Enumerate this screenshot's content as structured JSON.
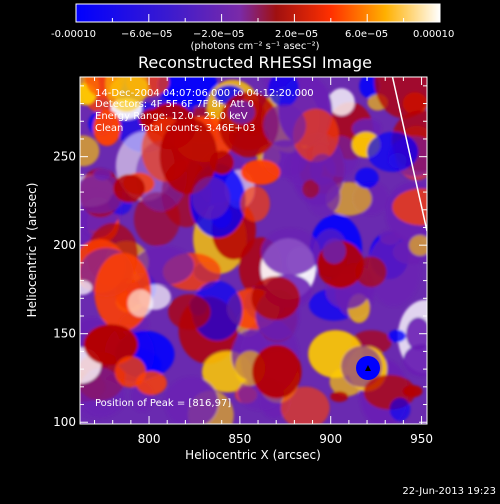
{
  "colorbar": {
    "tick_labels": [
      "-0.00010",
      "−6.0e−05",
      "−2.0e−05",
      "2.0e−05",
      "6.0e−05",
      "0.00010"
    ],
    "unit_label": "(photons cm⁻² s⁻¹ asec⁻²)"
  },
  "chart_data": {
    "type": "heatmap",
    "title": "Reconstructed RHESSI Image",
    "xlabel": "Heliocentric X (arcsec)",
    "ylabel": "Heliocentric Y (arcsec)",
    "xlim": [
      762,
      953
    ],
    "ylim": [
      99,
      295
    ],
    "x_ticks": [
      800,
      850,
      900,
      950
    ],
    "y_ticks": [
      100,
      150,
      200,
      250
    ],
    "clim": [
      -0.0001,
      0.0001
    ],
    "colormap": [
      "#0000ff",
      "#6a1fb4",
      "#b50000",
      "#ff4000",
      "#ffcc00",
      "#ffffff"
    ],
    "annotations": [
      "14-Dec-2004 04:07:06.000 to 04:12:20.000",
      "Detectors: 4F 5F 6F 7F 8F, Att 0",
      "Energy Range: 12.0 - 25.0 keV",
      "Clean     Total counts: 3.46E+03"
    ],
    "peak_label": "Position of Peak = [816,97]",
    "limb_curve": [
      [
        934,
        295
      ],
      [
        953,
        208
      ]
    ]
  },
  "footer": {
    "timestamp": "22-Jun-2013 19:23"
  }
}
